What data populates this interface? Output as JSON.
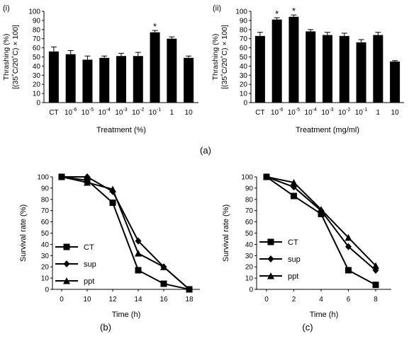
{
  "figure": {
    "caption_a": "(a)",
    "caption_b": "(b)",
    "caption_c": "(c)"
  },
  "chart_data": [
    {
      "id": "a-i",
      "panel_label": "(i)",
      "type": "bar",
      "ylabel_line1": "Thrashing (%)",
      "ylabel_line2": "[(35˚C/20˚C) × 100]",
      "xlabel": "Treatment (%)",
      "ylim": [
        0,
        100
      ],
      "yticks": [
        0,
        10,
        20,
        30,
        40,
        50,
        60,
        70,
        80,
        90,
        100
      ],
      "categories": [
        {
          "base": "CT",
          "exp": ""
        },
        {
          "base": "10",
          "exp": "-6"
        },
        {
          "base": "10",
          "exp": "-5"
        },
        {
          "base": "10",
          "exp": "-4"
        },
        {
          "base": "10",
          "exp": "-3"
        },
        {
          "base": "10",
          "exp": "-2"
        },
        {
          "base": "10",
          "exp": "-1"
        },
        {
          "base": "1",
          "exp": ""
        },
        {
          "base": "10",
          "exp": ""
        }
      ],
      "values": [
        56,
        53,
        47,
        49,
        51,
        51,
        77,
        70,
        49
      ],
      "errors": [
        5,
        4,
        4,
        2,
        3,
        4,
        2,
        2,
        2
      ],
      "annotations": [
        {
          "index": 6,
          "text": "*"
        }
      ],
      "bar_color": "#000000"
    },
    {
      "id": "a-ii",
      "panel_label": "(ii)",
      "type": "bar",
      "ylabel_line1": "Thrashing (%)",
      "ylabel_line2": "[(35˚C/20˚C) × 100]",
      "xlabel": "Treatment (mg/ml)",
      "ylim": [
        0,
        100
      ],
      "yticks": [
        0,
        10,
        20,
        30,
        40,
        50,
        60,
        70,
        80,
        90,
        100
      ],
      "categories": [
        {
          "base": "CT",
          "exp": ""
        },
        {
          "base": "10",
          "exp": "-6"
        },
        {
          "base": "10",
          "exp": "-5"
        },
        {
          "base": "10",
          "exp": "-4"
        },
        {
          "base": "10",
          "exp": "-3"
        },
        {
          "base": "10",
          "exp": "-2"
        },
        {
          "base": "10",
          "exp": "-1"
        },
        {
          "base": "1",
          "exp": ""
        },
        {
          "base": "10",
          "exp": ""
        }
      ],
      "values": [
        73,
        91,
        94,
        78,
        74,
        73,
        66,
        74,
        45
      ],
      "errors": [
        4,
        2,
        2,
        2,
        3,
        3,
        3,
        3,
        1
      ],
      "annotations": [
        {
          "index": 1,
          "text": "*"
        },
        {
          "index": 2,
          "text": "*"
        }
      ],
      "bar_color": "#000000"
    },
    {
      "id": "b",
      "type": "line",
      "ylabel": "Survival rate (%)",
      "xlabel": "Time (h)",
      "ylim": [
        0,
        100
      ],
      "yticks": [
        0,
        10,
        20,
        30,
        40,
        50,
        60,
        70,
        80,
        90,
        100
      ],
      "x": [
        0,
        10,
        12,
        14,
        16,
        18
      ],
      "series": [
        {
          "name": "CT",
          "marker": "square",
          "values": [
            100,
            97,
            77,
            17,
            5,
            0
          ]
        },
        {
          "name": "sup",
          "marker": "diamond",
          "values": [
            100,
            100,
            87,
            43,
            20,
            0
          ]
        },
        {
          "name": "ppt",
          "marker": "triangle",
          "values": [
            100,
            95,
            89,
            32,
            20,
            0
          ]
        }
      ],
      "legend_position": "bottom-left"
    },
    {
      "id": "c",
      "type": "line",
      "ylabel": "Survival rate (%)",
      "xlabel": "Time (h)",
      "ylim": [
        0,
        100
      ],
      "yticks": [
        0,
        10,
        20,
        30,
        40,
        50,
        60,
        70,
        80,
        90,
        100
      ],
      "x": [
        0,
        2,
        4,
        6,
        8
      ],
      "series": [
        {
          "name": "CT",
          "marker": "square",
          "values": [
            100,
            83,
            67,
            17,
            4
          ]
        },
        {
          "name": "sup",
          "marker": "diamond",
          "values": [
            100,
            91,
            70,
            38,
            17
          ]
        },
        {
          "name": "ppt",
          "marker": "triangle",
          "values": [
            100,
            95,
            71,
            46,
            21
          ]
        }
      ],
      "legend_position": "bottom-left"
    }
  ]
}
